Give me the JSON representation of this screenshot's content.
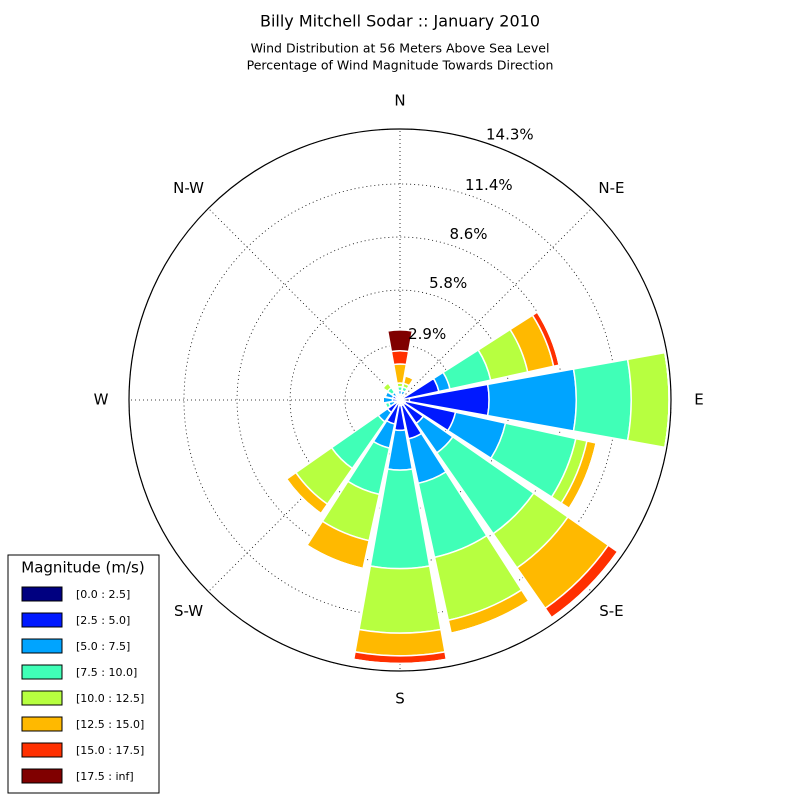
{
  "chart_data": {
    "type": "windrose",
    "title": "Billy Mitchell Sodar :: January 2010",
    "subtitle": [
      "Wind Distribution at 56 Meters Above Sea Level",
      "Percentage of Wind Magnitude Towards Direction"
    ],
    "categories": [
      "N",
      null,
      "N-E",
      null,
      "E",
      null,
      "S-E",
      null,
      "S",
      null,
      "S-W",
      null,
      "W",
      null,
      "N-W",
      null
    ],
    "ylim": [
      0,
      14.3
    ],
    "yticks": [
      {
        "value": 2.9,
        "label": "2.9%"
      },
      {
        "value": 5.8,
        "label": "5.8%"
      },
      {
        "value": 8.6,
        "label": "8.6%"
      },
      {
        "value": 11.4,
        "label": "11.4%"
      },
      {
        "value": 14.3,
        "label": "14.3%"
      }
    ],
    "grid": true,
    "legend_title": "Magnitude (m/s)",
    "legend_position": "lower left",
    "series": [
      {
        "name": "[0.0 : 2.5]",
        "color": "#000080",
        "values": [
          0.1,
          0.1,
          0.1,
          0.2,
          0.5,
          0.3,
          0.3,
          0.3,
          0.3,
          0.2,
          0.2,
          0.1,
          0.1,
          0.1,
          0.1,
          0
        ]
      },
      {
        "name": "[2.5 : 5.0]",
        "color": "#0019ff",
        "values": [
          0.2,
          0.2,
          0.1,
          1.9,
          4.2,
          2.7,
          1.2,
          1.8,
          1.3,
          1.1,
          0.6,
          0.2,
          0.3,
          0.3,
          0.2,
          0.1
        ]
      },
      {
        "name": "[5.0 : 7.5]",
        "color": "#00a4ff",
        "values": [
          0.2,
          0.2,
          0,
          0.6,
          4.6,
          2.7,
          1.9,
          2.4,
          2.1,
          1.3,
          0.6,
          0.3,
          0.5,
          0.4,
          0.2,
          0.1
        ]
      },
      {
        "name": "[7.5 : 10.0]",
        "color": "#40ffb7",
        "values": [
          0.2,
          0.2,
          0,
          2.2,
          2.9,
          3.8,
          5.2,
          4.0,
          5.2,
          2.5,
          3.0,
          0.2,
          0,
          0,
          0.3,
          0.1
        ]
      },
      {
        "name": "[10.0 : 12.5]",
        "color": "#b7ff40",
        "values": [
          0.2,
          0.2,
          0,
          2.0,
          2.0,
          0.6,
          2.2,
          3.4,
          3.4,
          2.5,
          2.3,
          0,
          0,
          0,
          0.3,
          0.1
        ]
      },
      {
        "name": "[12.5 : 15.0]",
        "color": "#ffb900",
        "values": [
          1.0,
          0.4,
          0,
          1.4,
          0,
          0.5,
          2.6,
          0.7,
          1.2,
          1.5,
          0.6,
          0,
          0,
          0,
          0,
          0
        ]
      },
      {
        "name": "[15.0 : 17.5]",
        "color": "#ff3000",
        "values": [
          0.7,
          0,
          0,
          0.3,
          0,
          0,
          0.6,
          0,
          0.4,
          0,
          0,
          0,
          0,
          0,
          0,
          0
        ]
      },
      {
        "name": "[17.5 : inf]",
        "color": "#800000",
        "values": [
          1.1,
          0,
          0,
          0,
          0,
          0,
          0,
          0,
          0,
          0,
          0,
          0,
          0,
          0,
          0,
          0
        ]
      }
    ]
  }
}
